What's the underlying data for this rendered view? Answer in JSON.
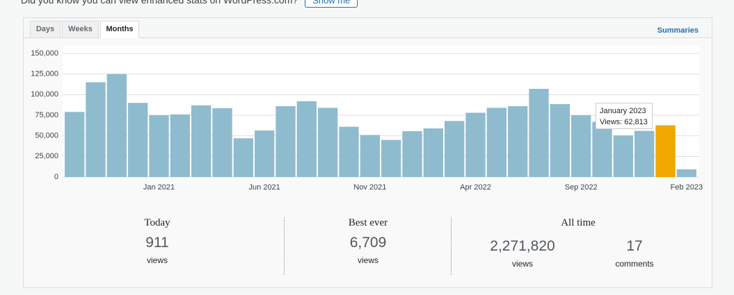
{
  "notice": {
    "text": "Did you know you can view enhanced stats on WordPress.com?",
    "button": "Show me"
  },
  "tabs": [
    "Days",
    "Weeks",
    "Months"
  ],
  "summaries": "Summaries",
  "chart_data": {
    "type": "bar",
    "categories": [
      null,
      null,
      null,
      null,
      "Jan 2021",
      null,
      null,
      null,
      null,
      "Jun 2021",
      null,
      null,
      null,
      null,
      "Nov 2021",
      null,
      null,
      null,
      null,
      "Apr 2022",
      null,
      null,
      null,
      null,
      "Sep 2022",
      null,
      null,
      null,
      null,
      "Feb 2023"
    ],
    "values": [
      79000,
      115000,
      125000,
      90000,
      75000,
      76000,
      87000,
      83500,
      47000,
      56500,
      86000,
      92000,
      84000,
      61000,
      51000,
      45000,
      55600,
      59000,
      68000,
      78000,
      84000,
      86000,
      107000,
      88500,
      75000,
      67000,
      50500,
      56000,
      62813,
      9300
    ],
    "colors": [
      "#8fbbce",
      "#8fbbce",
      "#8fbbce",
      "#8fbbce",
      "#8fbbce",
      "#8fbbce",
      "#8fbbce",
      "#8fbbce",
      "#8fbbce",
      "#8fbbce",
      "#8fbbce",
      "#8fbbce",
      "#8fbbce",
      "#8fbbce",
      "#8fbbce",
      "#8fbbce",
      "#8fbbce",
      "#8fbbce",
      "#8fbbce",
      "#8fbbce",
      "#8fbbce",
      "#8fbbce",
      "#8fbbce",
      "#8fbbce",
      "#8fbbce",
      "#8fbbce",
      "#8fbbce",
      "#8fbbce",
      "#f0a800",
      "#8fbbce"
    ],
    "ylim": [
      0,
      150000
    ],
    "yticks": [
      0,
      {
        "value": 25000,
        "label": "25,000"
      },
      {
        "value": 50000,
        "label": "50,000"
      },
      {
        "value": 75000,
        "label": "75,000"
      },
      {
        "value": 100000,
        "label": "100,000"
      },
      {
        "value": 125000,
        "label": "125,000"
      },
      {
        "value": 150000,
        "label": "150,000"
      }
    ],
    "grid": true,
    "tooltip": {
      "title": "January 2023",
      "text": "Views: 62,813"
    }
  },
  "stats": [
    {
      "title": "Today",
      "items": [
        {
          "number": "911",
          "unit": "views"
        }
      ]
    },
    {
      "title": "Best ever",
      "items": [
        {
          "number": "6,709",
          "unit": "views"
        }
      ]
    },
    {
      "title": "All time",
      "items": [
        {
          "number": "2,271,820",
          "unit": "views"
        },
        {
          "number": "17",
          "unit": "comments"
        }
      ]
    }
  ]
}
